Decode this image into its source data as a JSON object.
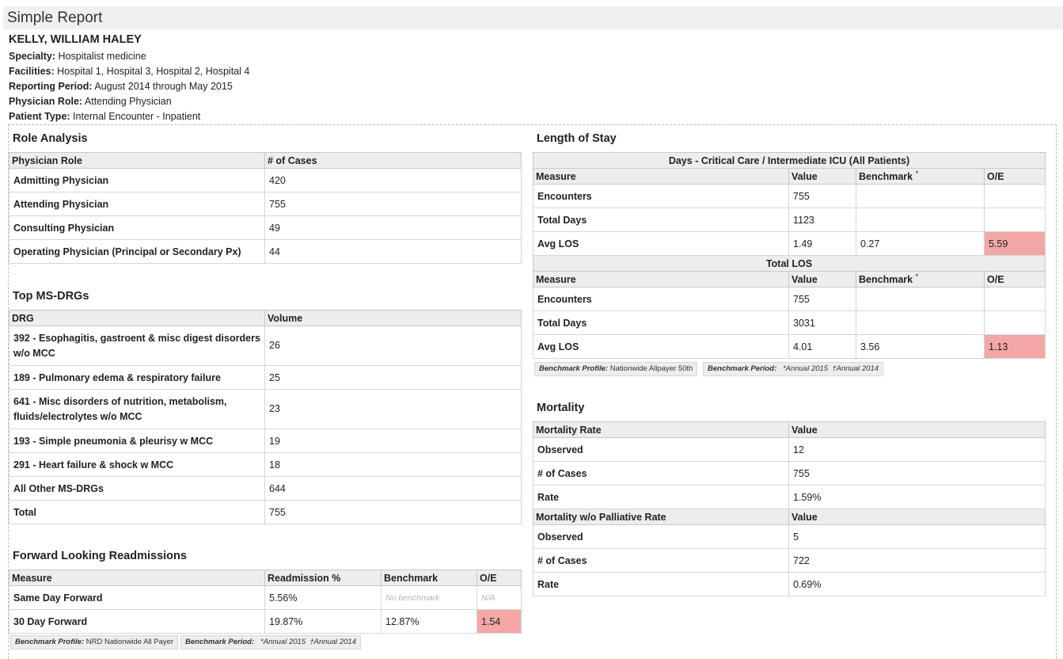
{
  "report_title": "Simple Report",
  "patient": {
    "name": "KELLY, WILLIAM HALEY",
    "specialty_label": "Specialty:",
    "specialty": "Hospitalist medicine",
    "facilities_label": "Facilities:",
    "facilities": "Hospital 1, Hospital 3, Hospital 2, Hospital 4",
    "period_label": "Reporting Period:",
    "period": "August 2014 through May 2015",
    "role_label": "Physician Role:",
    "role": "Attending Physician",
    "type_label": "Patient Type:",
    "type": "Internal Encounter - Inpatient"
  },
  "role_analysis": {
    "title": "Role Analysis",
    "headers": [
      "Physician Role",
      "# of Cases"
    ],
    "rows": [
      [
        "Admitting Physician",
        "420"
      ],
      [
        "Attending Physician",
        "755"
      ],
      [
        "Consulting Physician",
        "49"
      ],
      [
        "Operating Physician (Principal or Secondary Px)",
        "44"
      ]
    ]
  },
  "top_drgs": {
    "title": "Top MS-DRGs",
    "headers": [
      "DRG",
      "Volume"
    ],
    "rows": [
      [
        "392 - Esophagitis, gastroent & misc digest disorders w/o MCC",
        "26"
      ],
      [
        "189 - Pulmonary edema & respiratory failure",
        "25"
      ],
      [
        "641 - Misc disorders of nutrition, metabolism, fluids/electrolytes w/o MCC",
        "23"
      ],
      [
        "193 - Simple pneumonia & pleurisy w MCC",
        "19"
      ],
      [
        "291 - Heart failure & shock w MCC",
        "18"
      ],
      [
        "All Other MS-DRGs",
        "644"
      ],
      [
        "Total",
        "755"
      ]
    ]
  },
  "readmissions": {
    "title": "Forward Looking Readmissions",
    "headers": [
      "Measure",
      "Readmission %",
      "Benchmark",
      "O/E"
    ],
    "rows": [
      [
        "Same Day Forward",
        "5.56%",
        "No benchmark",
        "N/A"
      ],
      [
        "30 Day Forward",
        "19.87%",
        "12.87%",
        "1.54"
      ]
    ],
    "profile_label": "Benchmark Profile:",
    "profile": "NRD Nationwide All Payer",
    "period_label": "Benchmark Period:",
    "period_a": "*Annual 2015",
    "period_b": "†Annual 2014"
  },
  "los": {
    "title": "Length of Stay",
    "group1_title": "Days - Critical Care / Intermediate ICU (All Patients)",
    "group2_title": "Total LOS",
    "headers": [
      "Measure",
      "Value",
      "Benchmark",
      "O/E"
    ],
    "bench_mark": "*",
    "group1_rows": [
      [
        "Encounters",
        "755",
        "",
        ""
      ],
      [
        "Total Days",
        "1123",
        "",
        ""
      ],
      [
        "Avg LOS",
        "1.49",
        "0.27",
        "5.59"
      ]
    ],
    "group2_rows": [
      [
        "Encounters",
        "755",
        "",
        ""
      ],
      [
        "Total Days",
        "3031",
        "",
        ""
      ],
      [
        "Avg LOS",
        "4.01",
        "3.56",
        "1.13"
      ]
    ],
    "profile_label": "Benchmark Profile:",
    "profile": "Nationwide Allpayer 50th",
    "period_label": "Benchmark Period:",
    "period_a": "*Annual 2015",
    "period_b": "†Annual 2014"
  },
  "mortality": {
    "title": "Mortality",
    "group1_headers": [
      "Mortality Rate",
      "Value"
    ],
    "group1_rows": [
      [
        "Observed",
        "12"
      ],
      [
        "# of Cases",
        "755"
      ],
      [
        "Rate",
        "1.59%"
      ]
    ],
    "group2_headers": [
      "Mortality w/o Palliative Rate",
      "Value"
    ],
    "group2_rows": [
      [
        "Observed",
        "5"
      ],
      [
        "# of Cases",
        "722"
      ],
      [
        "Rate",
        "0.69%"
      ]
    ]
  },
  "colors": {
    "highlight": "#f3a7a7",
    "header_bg": "#ebedef"
  }
}
